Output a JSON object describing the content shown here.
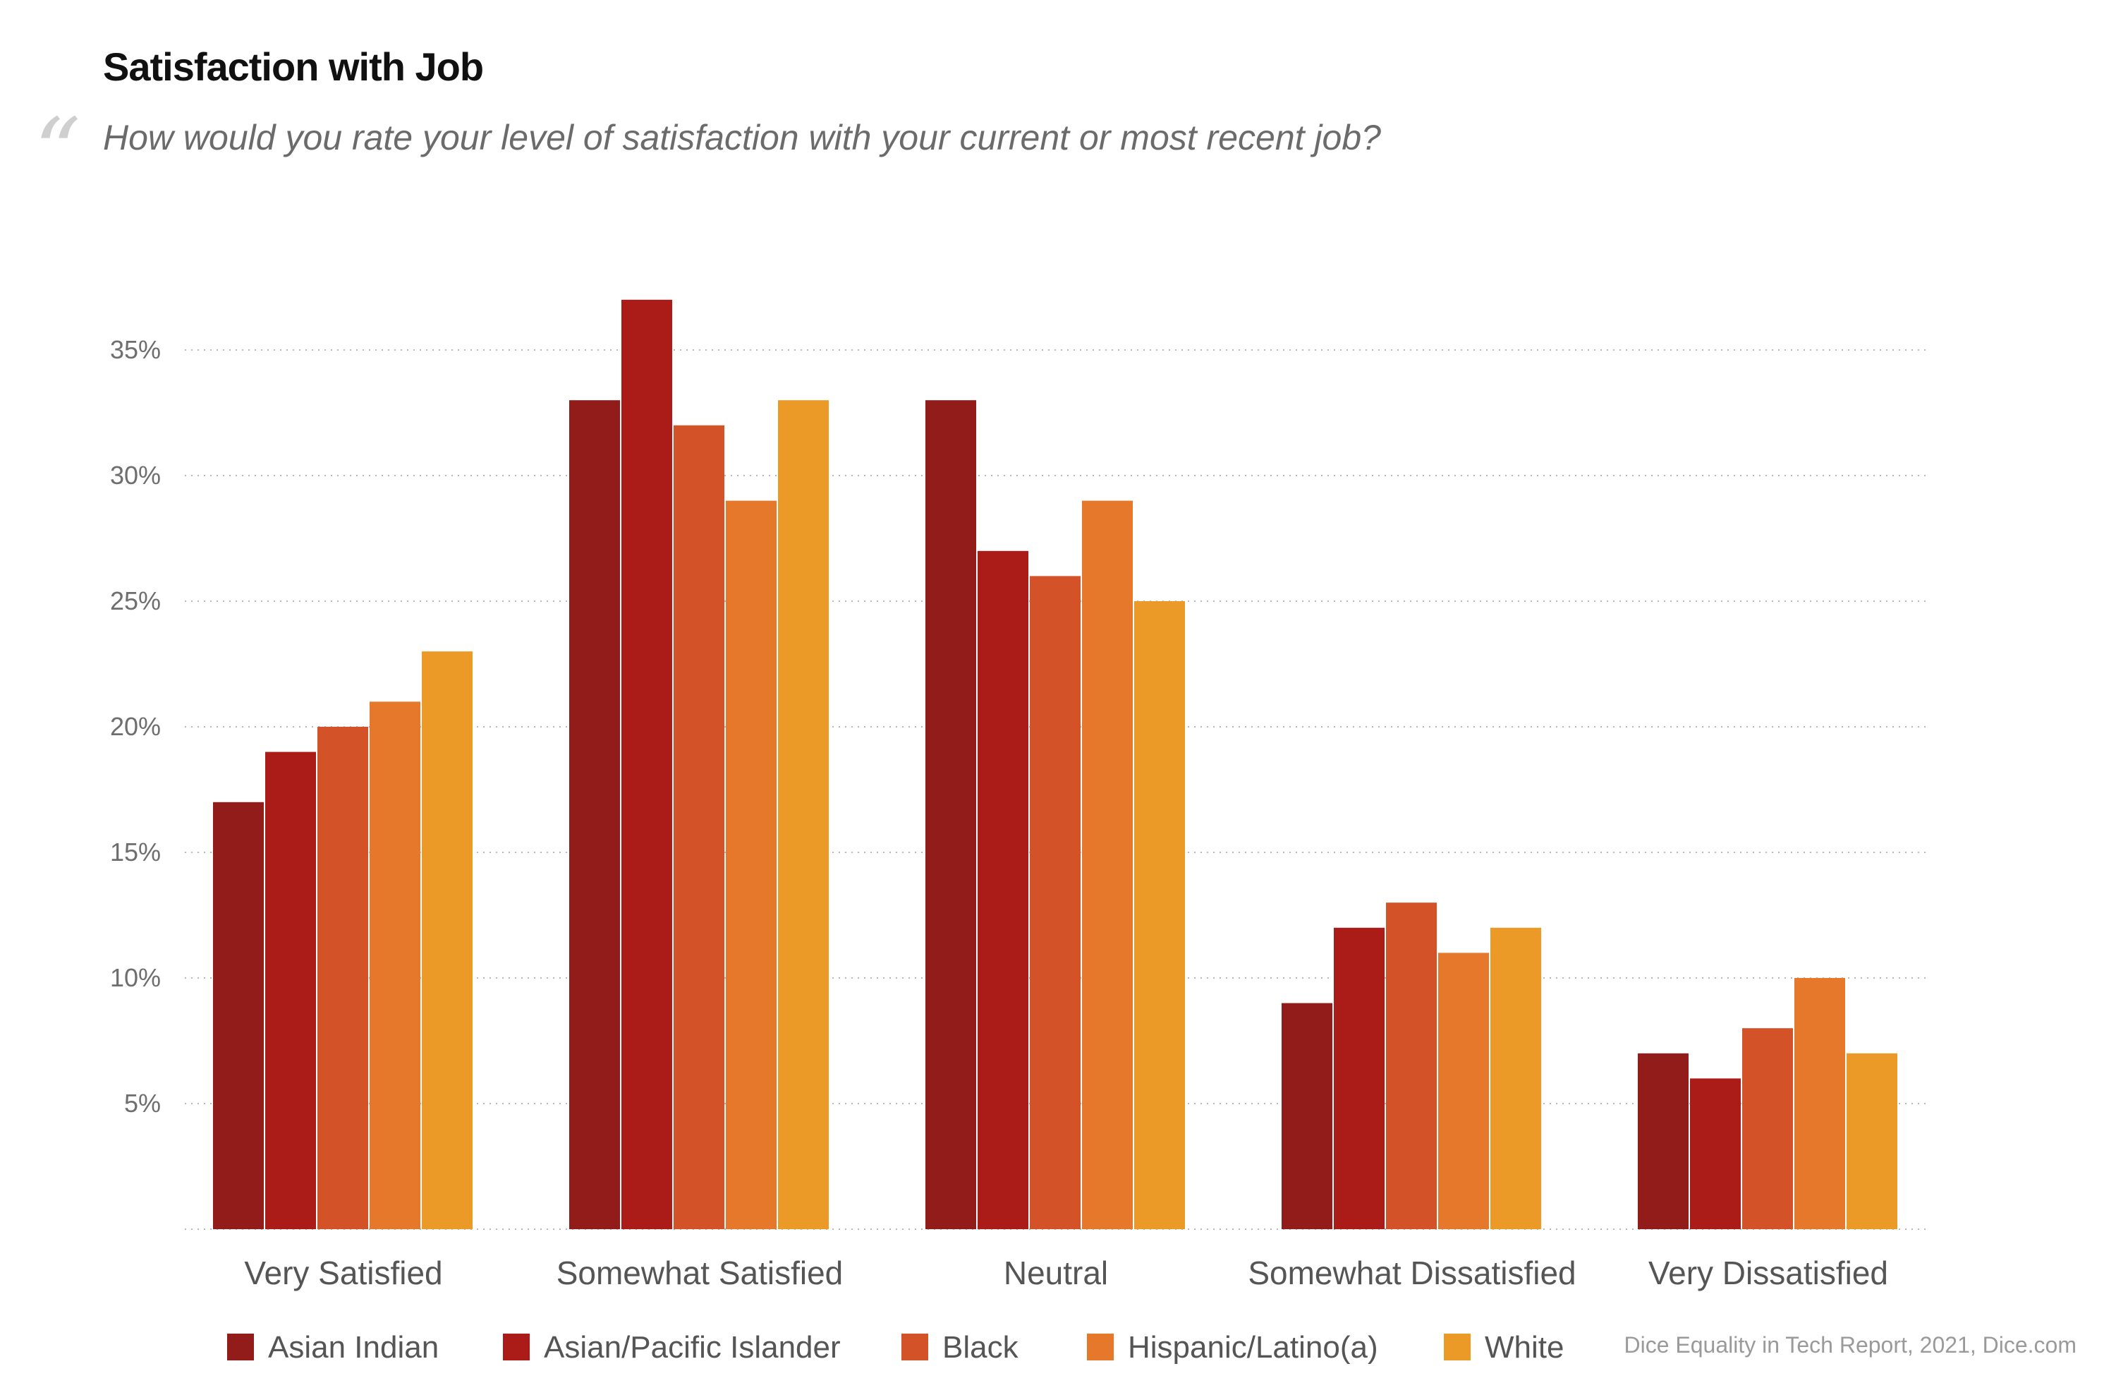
{
  "title": "Satisfaction with Job",
  "subtitle": "How would you rate your level of satisfaction with your current or most recent job?",
  "source": "Dice Equality in Tech Report, 2021, Dice.com",
  "chart_data": {
    "type": "bar",
    "categories": [
      "Very Satisfied",
      "Somewhat Satisfied",
      "Neutral",
      "Somewhat Dissatisfied",
      "Very Dissatisfied"
    ],
    "series": [
      {
        "name": "Asian Indian",
        "color": "#921c19",
        "values": [
          17,
          33,
          33,
          9,
          7
        ]
      },
      {
        "name": "Asian/Pacific Islander",
        "color": "#ab1b18",
        "values": [
          19,
          37,
          27,
          12,
          6
        ]
      },
      {
        "name": "Black",
        "color": "#d45228",
        "values": [
          20,
          32,
          26,
          13,
          8
        ]
      },
      {
        "name": "Hispanic/Latino(a)",
        "color": "#e6782b",
        "values": [
          21,
          29,
          29,
          11,
          10
        ]
      },
      {
        "name": "White",
        "color": "#ec9a27",
        "values": [
          23,
          33,
          25,
          12,
          7
        ]
      }
    ],
    "yticks": [
      "5%",
      "10%",
      "15%",
      "20%",
      "25%",
      "30%",
      "35%"
    ],
    "ylim": [
      0,
      38
    ],
    "grid": true,
    "legend_position": "bottom"
  }
}
